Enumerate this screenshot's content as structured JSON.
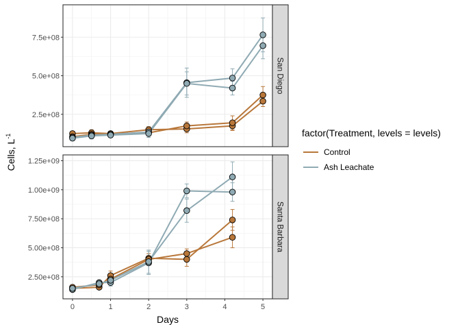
{
  "chart_data": {
    "type": "line",
    "ylabel": "Cells, L",
    "ylabel_superscript": "-1",
    "xlabel": "Days",
    "xlim": [
      -0.25,
      5.25
    ],
    "x_ticks": [
      0,
      1,
      2,
      3,
      4,
      5
    ],
    "x_tick_labels": [
      "0",
      "1",
      "2",
      "3",
      "4",
      "5"
    ],
    "grid": true,
    "legend": {
      "title": "factor(Treatment, levels = levels)",
      "position": "right",
      "entries": [
        {
          "label": "Control",
          "color": "#B8773A"
        },
        {
          "label": "Ash Leachate",
          "color": "#8FAAB3"
        }
      ]
    },
    "panels": [
      {
        "strip": "San Diego",
        "ylim": [
          40000000,
          960000000
        ],
        "y_ticks": [
          250000000,
          500000000,
          750000000
        ],
        "y_tick_labels": [
          "2.5e+08",
          "5.0e+08",
          "7.5e+08"
        ],
        "series": [
          {
            "name": "Control",
            "color": "#B8773A",
            "x": [
              0,
              0.5,
              1,
              2,
              3,
              4.2,
              5
            ],
            "y": [
              125000000,
              130000000,
              125000000,
              150000000,
              155000000,
              175000000,
              335000000
            ],
            "err": [
              15000000,
              20000000,
              15000000,
              20000000,
              25000000,
              30000000,
              35000000
            ]
          },
          {
            "name": "Control",
            "color": "#B8773A",
            "x": [
              0,
              0.5,
              1,
              2,
              3,
              4.2,
              5
            ],
            "y": [
              105000000,
              120000000,
              120000000,
              130000000,
              175000000,
              195000000,
              375000000
            ],
            "err": [
              15000000,
              20000000,
              15000000,
              20000000,
              25000000,
              45000000,
              55000000
            ]
          },
          {
            "name": "Ash Leachate",
            "color": "#8FAAB3",
            "x": [
              0,
              0.5,
              1,
              2,
              3,
              4.2,
              5
            ],
            "y": [
              100000000,
              115000000,
              120000000,
              135000000,
              455000000,
              485000000,
              765000000
            ],
            "err": [
              15000000,
              20000000,
              15000000,
              25000000,
              95000000,
              60000000,
              110000000
            ]
          },
          {
            "name": "Ash Leachate",
            "color": "#8FAAB3",
            "x": [
              0,
              0.5,
              1,
              2,
              3,
              4.2,
              5
            ],
            "y": [
              95000000,
              110000000,
              115000000,
              125000000,
              450000000,
              420000000,
              695000000
            ],
            "err": [
              15000000,
              20000000,
              15000000,
              25000000,
              75000000,
              45000000,
              85000000
            ]
          }
        ]
      },
      {
        "strip": "Santa Barbara",
        "ylim": [
          60000000,
          1300000000
        ],
        "y_ticks": [
          250000000,
          500000000,
          750000000,
          1000000000,
          1250000000
        ],
        "y_tick_labels": [
          "2.50e+08",
          "5.00e+08",
          "7.50e+08",
          "1.00e+09",
          "1.25e+09"
        ],
        "series": [
          {
            "name": "Control",
            "color": "#B8773A",
            "x": [
              0,
              0.7,
              1,
              2,
              3,
              4.2
            ],
            "y": [
              150000000,
              160000000,
              260000000,
              410000000,
              400000000,
              740000000
            ],
            "err": [
              20000000,
              20000000,
              40000000,
              40000000,
              60000000,
              90000000
            ]
          },
          {
            "name": "Control",
            "color": "#B8773A",
            "x": [
              0,
              0.7,
              1,
              2,
              3,
              4.2
            ],
            "y": [
              160000000,
              180000000,
              230000000,
              400000000,
              450000000,
              590000000
            ],
            "err": [
              20000000,
              20000000,
              40000000,
              50000000,
              40000000,
              90000000
            ]
          },
          {
            "name": "Ash Leachate",
            "color": "#8FAAB3",
            "x": [
              0,
              0.7,
              1,
              2,
              3,
              4.2
            ],
            "y": [
              140000000,
              200000000,
              200000000,
              370000000,
              990000000,
              980000000
            ],
            "err": [
              20000000,
              20000000,
              30000000,
              100000000,
              60000000,
              80000000
            ]
          },
          {
            "name": "Ash Leachate",
            "color": "#8FAAB3",
            "x": [
              0,
              0.7,
              1,
              2,
              3,
              4.2
            ],
            "y": [
              150000000,
              190000000,
              220000000,
              380000000,
              820000000,
              1110000000
            ],
            "err": [
              20000000,
              20000000,
              30000000,
              100000000,
              100000000,
              130000000
            ]
          }
        ]
      }
    ]
  }
}
